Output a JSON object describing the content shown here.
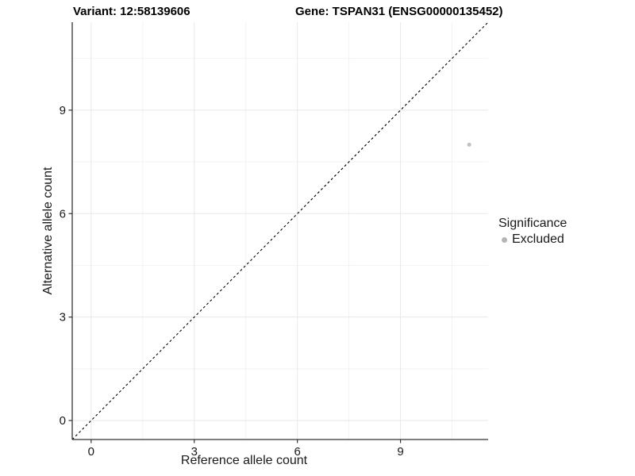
{
  "titles": {
    "variant": "Variant: 12:58139606",
    "gene": "Gene: TSPAN31 (ENSG00000135452)"
  },
  "legend": {
    "title": "Significance",
    "items": [
      {
        "label": "Excluded",
        "color": "#b5b5b5"
      }
    ]
  },
  "chart_data": {
    "type": "scatter",
    "xlabel": "Reference allele count",
    "ylabel": "Alternative allele count",
    "xlim": [
      -0.55,
      11.55
    ],
    "ylim": [
      -0.55,
      11.55
    ],
    "x_ticks": [
      0,
      3,
      6,
      9
    ],
    "y_ticks": [
      0,
      3,
      6,
      9
    ],
    "x_minor_ticks": [
      1.5,
      4.5,
      7.5,
      10.5
    ],
    "y_minor_ticks": [
      1.5,
      4.5,
      7.5,
      10.5
    ],
    "grid": true,
    "legend_position": "right",
    "points": [
      {
        "x": 11,
        "y": 8,
        "significance": "Excluded",
        "color": "#c0c0c0",
        "radius": 2.5
      }
    ],
    "reference_line": {
      "type": "identity",
      "style": "dashed",
      "from": [
        -0.55,
        -0.55
      ],
      "to": [
        11.55,
        11.55
      ],
      "color": "#000000"
    },
    "colors": {
      "grid_major": "#e8e8e8",
      "grid_minor": "#f2f2f2",
      "axis_line": "#333333",
      "tick_label": "#1a1a1a"
    }
  }
}
